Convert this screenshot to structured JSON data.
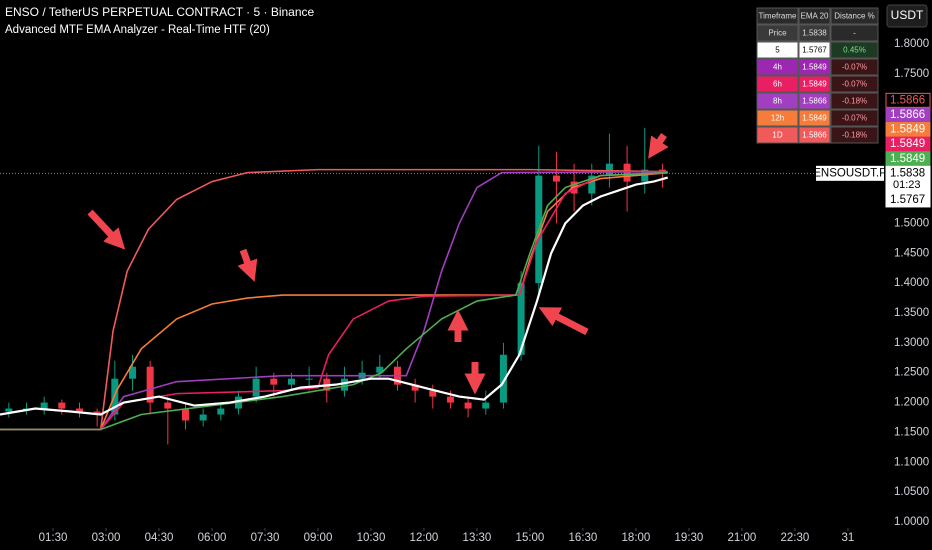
{
  "header": {
    "title": "ENSO / TetherUS PERPETUAL CONTRACT · 5 · Binance",
    "indicator": "Advanced MTF EMA Analyzer - Real-Time HTF (20)",
    "currency": "USDT"
  },
  "table": {
    "columns": [
      "Timeframe",
      "EMA 20",
      "Distance %"
    ],
    "rows": [
      [
        "Price",
        "1.5838",
        "-"
      ],
      [
        "5",
        "1.5767",
        "0.45%"
      ],
      [
        "4h",
        "1.5849",
        "-0.07%"
      ],
      [
        "6h",
        "1.5849",
        "-0.07%"
      ],
      [
        "8h",
        "1.5866",
        "-0.18%"
      ],
      [
        "12h",
        "1.5849",
        "-0.07%"
      ],
      [
        "1D",
        "1.5866",
        "-0.18%"
      ]
    ],
    "row_colors": [
      "#3a3a3a",
      "#ffffff",
      "#9c27b0",
      "#e91e63",
      "#a23ec0",
      "#f57c3a",
      "#f05a5a"
    ],
    "row_text_colors": [
      "#dddddd",
      "#000000",
      "#ffffff",
      "#ffffff",
      "#ffffff",
      "#ffffff",
      "#ffffff"
    ],
    "distance_colors": [
      "#2a2a2a",
      "#1d3a22",
      "#3a1518",
      "#3a1518",
      "#3a1518",
      "#3a1518",
      "#3a1518"
    ],
    "distance_text_colors": [
      "#dddddd",
      "#7be08a",
      "#ff9aa2",
      "#ff9aa2",
      "#ff9aa2",
      "#ff9aa2",
      "#ff9aa2"
    ]
  },
  "chart_data": {
    "type": "line",
    "xlim": [
      0,
      25.05
    ],
    "ylim": [
      0.99,
      1.874
    ],
    "xticks": [
      {
        "value": 1.5,
        "label": "01:30"
      },
      {
        "value": 3,
        "label": "03:00"
      },
      {
        "value": 4.5,
        "label": "04:30"
      },
      {
        "value": 6,
        "label": "06:00"
      },
      {
        "value": 7.5,
        "label": "07:30"
      },
      {
        "value": 9,
        "label": "09:00"
      },
      {
        "value": 10.5,
        "label": "10:30"
      },
      {
        "value": 12,
        "label": "12:00"
      },
      {
        "value": 13.5,
        "label": "13:30"
      },
      {
        "value": 15,
        "label": "15:00"
      },
      {
        "value": 16.5,
        "label": "16:30"
      },
      {
        "value": 18,
        "label": "18:00"
      },
      {
        "value": 19.5,
        "label": "19:30"
      },
      {
        "value": 21,
        "label": "21:00"
      },
      {
        "value": 22.5,
        "label": "22:30"
      },
      {
        "value": 24,
        "label": "31"
      }
    ],
    "yticks": [
      {
        "value": 1.0,
        "label": "1.0000"
      },
      {
        "value": 1.05,
        "label": "1.0500"
      },
      {
        "value": 1.1,
        "label": "1.1000"
      },
      {
        "value": 1.15,
        "label": "1.1500"
      },
      {
        "value": 1.2,
        "label": "1.2000"
      },
      {
        "value": 1.25,
        "label": "1.2500"
      },
      {
        "value": 1.3,
        "label": "1.3000"
      },
      {
        "value": 1.35,
        "label": "1.3500"
      },
      {
        "value": 1.4,
        "label": "1.4000"
      },
      {
        "value": 1.45,
        "label": "1.4500"
      },
      {
        "value": 1.5,
        "label": "1.5000"
      },
      {
        "value": 1.55,
        "label": "1.5500"
      },
      {
        "value": 1.6,
        "label": "1.6000"
      },
      {
        "value": 1.65,
        "label": "1.6500"
      },
      {
        "value": 1.7,
        "label": "1.7000"
      },
      {
        "value": 1.75,
        "label": "1.7500"
      },
      {
        "value": 1.8,
        "label": "1.8000"
      }
    ],
    "grid": false,
    "series": [
      {
        "color": "#f05a5a",
        "x": [
          0,
          2.85,
          3.2,
          3.6,
          4.2,
          5,
          6,
          7,
          9,
          12,
          15,
          18.9
        ],
        "values": [
          1.155,
          1.155,
          1.32,
          1.42,
          1.49,
          1.54,
          1.57,
          1.585,
          1.59,
          1.59,
          1.59,
          1.5866
        ]
      },
      {
        "color": "#f57c3a",
        "x": [
          0,
          2.85,
          3.3,
          4,
          5,
          6,
          7,
          8,
          14.7,
          15,
          15.5,
          16.2,
          17,
          18.9
        ],
        "values": [
          1.155,
          1.155,
          1.22,
          1.29,
          1.34,
          1.365,
          1.375,
          1.38,
          1.38,
          1.44,
          1.52,
          1.56,
          1.575,
          1.5849
        ]
      },
      {
        "color": "#a23ec0",
        "x": [
          0,
          2.85,
          3.5,
          5,
          8,
          11.5,
          12,
          12.5,
          13,
          13.5,
          14.2,
          18.9
        ],
        "values": [
          1.155,
          1.155,
          1.21,
          1.235,
          1.245,
          1.245,
          1.32,
          1.42,
          1.5,
          1.56,
          1.585,
          1.5866
        ]
      },
      {
        "color": "#e91e63",
        "x": [
          0,
          2.85,
          3.5,
          5,
          8,
          9,
          9.3,
          10,
          11,
          12,
          14.7,
          15.2,
          16,
          17,
          18.9
        ],
        "values": [
          1.155,
          1.155,
          1.2,
          1.215,
          1.22,
          1.225,
          1.28,
          1.34,
          1.37,
          1.378,
          1.38,
          1.47,
          1.55,
          1.58,
          1.5849
        ]
      },
      {
        "color": "#4caf50",
        "x": [
          0,
          2.85,
          4,
          6,
          8,
          10,
          10.8,
          11.5,
          12.5,
          13.5,
          14.6,
          15,
          15.5,
          16,
          17,
          18.9
        ],
        "values": [
          1.155,
          1.155,
          1.18,
          1.195,
          1.21,
          1.23,
          1.25,
          1.29,
          1.34,
          1.37,
          1.38,
          1.45,
          1.53,
          1.56,
          1.58,
          1.5849
        ]
      },
      {
        "color": "#ffffff",
        "x": [
          0,
          1,
          2,
          2.85,
          3.5,
          4.5,
          5.5,
          6.5,
          7.5,
          8.5,
          9.5,
          10.5,
          11,
          12,
          13,
          13.7,
          14.2,
          14.7,
          15.2,
          15.6,
          16,
          16.5,
          17,
          17.5,
          18,
          18.5,
          18.9
        ],
        "values": [
          1.18,
          1.19,
          1.185,
          1.18,
          1.2,
          1.21,
          1.195,
          1.2,
          1.21,
          1.225,
          1.23,
          1.24,
          1.24,
          1.225,
          1.21,
          1.205,
          1.23,
          1.28,
          1.37,
          1.45,
          1.5,
          1.53,
          1.545,
          1.555,
          1.565,
          1.57,
          1.5767
        ]
      }
    ],
    "candles": {
      "up_color": "#089981",
      "down_color": "#f23645",
      "x": [
        0.25,
        0.75,
        1.25,
        1.75,
        2.25,
        2.75,
        3.25,
        3.75,
        4.25,
        4.75,
        5.25,
        5.75,
        6.25,
        6.75,
        7.25,
        7.75,
        8.25,
        8.75,
        9.25,
        9.75,
        10.25,
        10.75,
        11.25,
        11.75,
        12.25,
        12.75,
        13.25,
        13.75,
        14.25,
        14.75,
        15.25,
        15.75,
        16.25,
        16.75,
        17.25,
        17.75,
        18.25,
        18.75
      ],
      "open": [
        1.185,
        1.19,
        1.19,
        1.2,
        1.19,
        1.185,
        1.18,
        1.24,
        1.26,
        1.2,
        1.19,
        1.17,
        1.18,
        1.19,
        1.21,
        1.24,
        1.23,
        1.24,
        1.24,
        1.22,
        1.24,
        1.25,
        1.26,
        1.23,
        1.22,
        1.21,
        1.2,
        1.19,
        1.2,
        1.28,
        1.4,
        1.58,
        1.57,
        1.55,
        1.58,
        1.6,
        1.57,
        1.59
      ],
      "high": [
        1.2,
        1.2,
        1.21,
        1.205,
        1.2,
        1.19,
        1.27,
        1.28,
        1.27,
        1.21,
        1.2,
        1.19,
        1.2,
        1.22,
        1.26,
        1.25,
        1.25,
        1.26,
        1.25,
        1.26,
        1.27,
        1.28,
        1.27,
        1.24,
        1.23,
        1.22,
        1.21,
        1.22,
        1.3,
        1.42,
        1.63,
        1.62,
        1.6,
        1.6,
        1.65,
        1.63,
        1.66,
        1.6
      ],
      "low": [
        1.175,
        1.18,
        1.18,
        1.18,
        1.175,
        1.16,
        1.17,
        1.22,
        1.18,
        1.13,
        1.155,
        1.16,
        1.17,
        1.18,
        1.2,
        1.21,
        1.22,
        1.22,
        1.2,
        1.21,
        1.23,
        1.24,
        1.22,
        1.2,
        1.19,
        1.19,
        1.175,
        1.18,
        1.19,
        1.27,
        1.38,
        1.5,
        1.52,
        1.53,
        1.56,
        1.52,
        1.55,
        1.56
      ],
      "close": [
        1.19,
        1.19,
        1.2,
        1.19,
        1.185,
        1.18,
        1.24,
        1.26,
        1.2,
        1.19,
        1.17,
        1.18,
        1.19,
        1.21,
        1.24,
        1.23,
        1.24,
        1.24,
        1.22,
        1.24,
        1.25,
        1.26,
        1.23,
        1.22,
        1.21,
        1.2,
        1.19,
        1.2,
        1.28,
        1.4,
        1.58,
        1.57,
        1.55,
        1.58,
        1.6,
        1.57,
        1.59,
        1.5838
      ]
    },
    "symbol_label": "ENSOUSDT.P",
    "price_labels": [
      {
        "value": 1.5866,
        "color": "#f05a5a",
        "text_color": "#f05a5a",
        "fill": "#000000"
      },
      {
        "value": 1.5866,
        "color": "#a23ec0",
        "text_color": "#ffffff",
        "fill": "#a23ec0"
      },
      {
        "value": 1.5849,
        "color": "#f57c3a",
        "text_color": "#ffffff",
        "fill": "#f57c3a"
      },
      {
        "value": 1.5849,
        "color": "#e91e63",
        "text_color": "#ffffff",
        "fill": "#e91e63"
      },
      {
        "value": 1.5849,
        "color": "#4caf50",
        "text_color": "#ffffff",
        "fill": "#4caf50"
      },
      {
        "value": 1.5838,
        "color": "#ffffff",
        "text_color": "#000000",
        "fill": "#ffffff",
        "countdown": "01:23"
      },
      {
        "value": 1.5767,
        "color": "#ffffff",
        "text_color": "#000000",
        "fill": "#ffffff"
      }
    ]
  }
}
